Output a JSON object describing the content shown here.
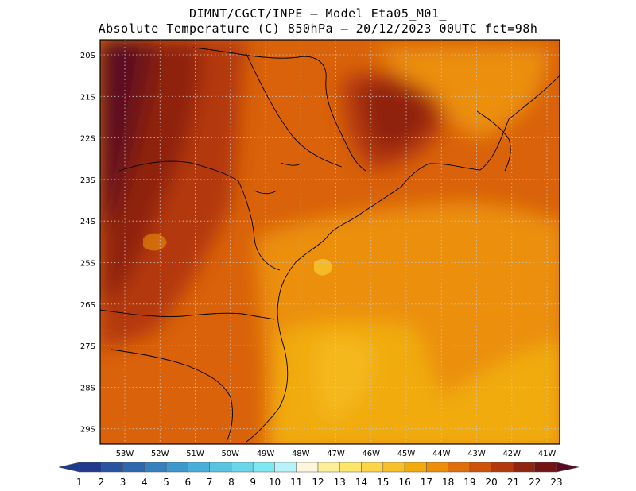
{
  "header": {
    "line1": "DIMNT/CGCT/INPE —  Model Eta05_M01_",
    "line2": "Absolute Temperature (C) 850hPa —  20/12/2023 00UTC fct=98h"
  },
  "map": {
    "lat_labels": [
      "20S",
      "21S",
      "22S",
      "23S",
      "24S",
      "25S",
      "26S",
      "27S",
      "28S",
      "29S"
    ],
    "lon_labels": [
      "53W",
      "52W",
      "51W",
      "50W",
      "49W",
      "48W",
      "47W",
      "46W",
      "45W",
      "44W",
      "43W",
      "42W",
      "41W"
    ],
    "grid": "dotted"
  },
  "colorbar": {
    "labels": [
      "1",
      "2",
      "3",
      "4",
      "5",
      "6",
      "7",
      "8",
      "9",
      "10",
      "11",
      "12",
      "13",
      "14",
      "15",
      "16",
      "17",
      "18",
      "19",
      "20",
      "21",
      "22",
      "23"
    ],
    "colors": [
      "#1f3a8c",
      "#27539f",
      "#2e68ae",
      "#3680bf",
      "#3f98cc",
      "#4aafd8",
      "#59c4e2",
      "#6ad6ea",
      "#7ee8f2",
      "#b7f2fa",
      "#fdf5dc",
      "#fdef9a",
      "#fde56a",
      "#fbd447",
      "#f6c02a",
      "#f1ab0c",
      "#eb8f0a",
      "#e06e0a",
      "#cf520a",
      "#b3390c",
      "#8f2410",
      "#731414",
      "#5a0a22"
    ]
  }
}
